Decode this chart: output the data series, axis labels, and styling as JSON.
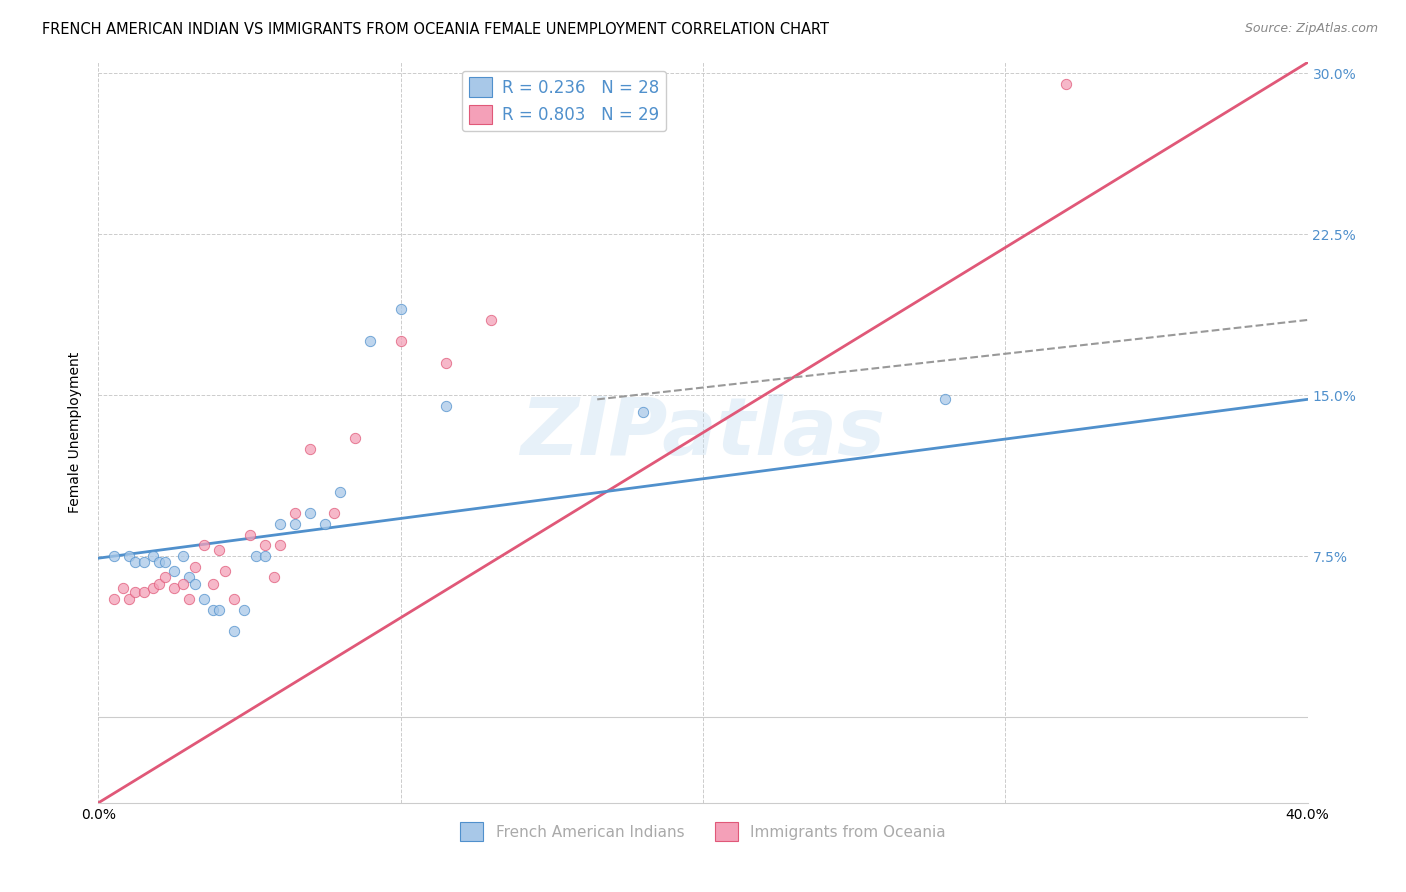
{
  "title": "FRENCH AMERICAN INDIAN VS IMMIGRANTS FROM OCEANIA FEMALE UNEMPLOYMENT CORRELATION CHART",
  "source": "Source: ZipAtlas.com",
  "ylabel": "Female Unemployment",
  "xlim": [
    0.0,
    0.4
  ],
  "ylim": [
    -0.04,
    0.305
  ],
  "plot_ylim": [
    0.0,
    0.305
  ],
  "xticks": [
    0.0,
    0.1,
    0.2,
    0.3,
    0.4
  ],
  "xtick_labels": [
    "0.0%",
    "",
    "",
    "",
    "40.0%"
  ],
  "yticks": [
    0.0,
    0.075,
    0.15,
    0.225,
    0.3
  ],
  "ytick_labels_right": [
    "",
    "7.5%",
    "15.0%",
    "22.5%",
    "30.0%"
  ],
  "blue_color": "#a8c8e8",
  "pink_color": "#f4a0b8",
  "blue_line_color": "#5090cc",
  "pink_line_color": "#e05878",
  "dashed_line_color": "#999999",
  "watermark": "ZIPatlas",
  "legend_text_blue": "R = 0.236   N = 28",
  "legend_text_pink": "R = 0.803   N = 29",
  "legend_label_blue": "French American Indians",
  "legend_label_pink": "Immigrants from Oceania",
  "blue_points_x": [
    0.005,
    0.01,
    0.012,
    0.015,
    0.018,
    0.02,
    0.022,
    0.025,
    0.028,
    0.03,
    0.032,
    0.035,
    0.038,
    0.04,
    0.045,
    0.048,
    0.052,
    0.055,
    0.06,
    0.065,
    0.07,
    0.075,
    0.08,
    0.09,
    0.1,
    0.115,
    0.18,
    0.28
  ],
  "blue_points_y": [
    0.075,
    0.075,
    0.072,
    0.072,
    0.075,
    0.072,
    0.072,
    0.068,
    0.075,
    0.065,
    0.062,
    0.055,
    0.05,
    0.05,
    0.04,
    0.05,
    0.075,
    0.075,
    0.09,
    0.09,
    0.095,
    0.09,
    0.105,
    0.175,
    0.19,
    0.145,
    0.142,
    0.148
  ],
  "pink_points_x": [
    0.005,
    0.008,
    0.01,
    0.012,
    0.015,
    0.018,
    0.02,
    0.022,
    0.025,
    0.028,
    0.03,
    0.032,
    0.035,
    0.038,
    0.04,
    0.042,
    0.045,
    0.05,
    0.055,
    0.058,
    0.06,
    0.065,
    0.07,
    0.078,
    0.085,
    0.1,
    0.115,
    0.13,
    0.32
  ],
  "pink_points_y": [
    0.055,
    0.06,
    0.055,
    0.058,
    0.058,
    0.06,
    0.062,
    0.065,
    0.06,
    0.062,
    0.055,
    0.07,
    0.08,
    0.062,
    0.078,
    0.068,
    0.055,
    0.085,
    0.08,
    0.065,
    0.08,
    0.095,
    0.125,
    0.095,
    0.13,
    0.175,
    0.165,
    0.185,
    0.295
  ],
  "blue_trend_x0": 0.0,
  "blue_trend_y0": 0.074,
  "blue_trend_x1": 0.4,
  "blue_trend_y1": 0.148,
  "pink_trend_x0": 0.0,
  "pink_trend_y0": -0.04,
  "pink_trend_x1": 0.4,
  "pink_trend_y1": 0.305,
  "dash_trend_x0": 0.165,
  "dash_trend_y0": 0.148,
  "dash_trend_x1": 0.4,
  "dash_trend_y1": 0.185,
  "background_color": "#ffffff",
  "grid_color": "#cccccc",
  "title_fontsize": 10.5,
  "source_fontsize": 9,
  "axis_label_fontsize": 10,
  "tick_fontsize": 10,
  "legend_fontsize": 12,
  "right_ytick_color": "#5090cc",
  "point_size": 55,
  "point_alpha": 0.75
}
